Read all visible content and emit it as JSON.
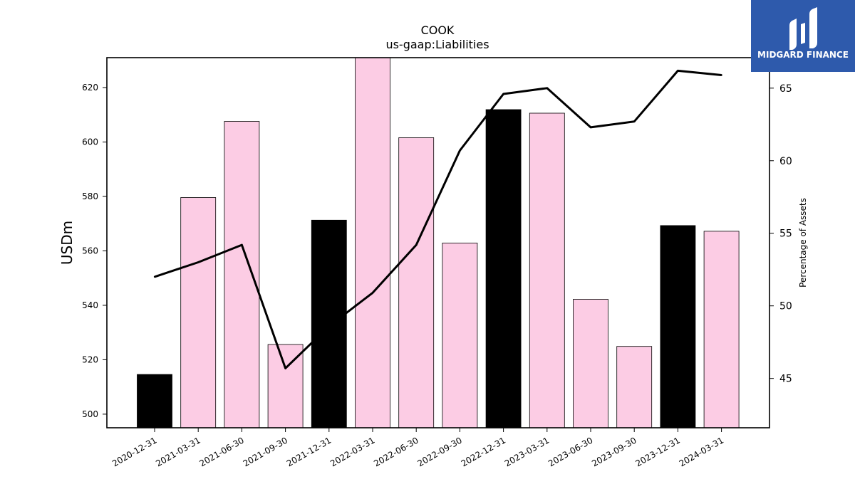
{
  "logo": {
    "text": "MIDGARD FINANCE",
    "bg_color": "#2e5aac"
  },
  "chart_data": {
    "type": "bar",
    "title": "COOK",
    "subtitle": "us-gaap:Liabilities",
    "ylabel": "USDm",
    "ylabel_right": "Percentage of Assets",
    "ylim": [
      495,
      631
    ],
    "ylim_right": [
      41.6,
      67.1
    ],
    "yticks": [
      500,
      520,
      540,
      560,
      580,
      600,
      620
    ],
    "yticks_right": [
      45,
      50,
      55,
      60,
      65
    ],
    "categories": [
      "2020-12-31",
      "2021-03-31",
      "2021-06-30",
      "2021-09-30",
      "2021-12-31",
      "2022-03-31",
      "2022-06-30",
      "2022-09-30",
      "2022-12-31",
      "2023-03-31",
      "2023-06-30",
      "2023-09-30",
      "2023-12-31",
      "2024-03-31"
    ],
    "series": [
      {
        "type": "bar",
        "axis": "left",
        "values": [
          514.6,
          579.6,
          607.6,
          525.6,
          571.3,
          631.0,
          601.6,
          562.9,
          611.9,
          610.6,
          542.2,
          524.9,
          569.3,
          567.2
        ],
        "colors": [
          "#000000",
          "#fccce4",
          "#fccce4",
          "#fccce4",
          "#000000",
          "#fccce4",
          "#fccce4",
          "#fccce4",
          "#000000",
          "#fccce4",
          "#fccce4",
          "#fccce4",
          "#000000",
          "#fccce4"
        ]
      },
      {
        "type": "line",
        "axis": "right",
        "color": "#000000",
        "values": [
          52.0,
          53.0,
          54.2,
          45.7,
          48.6,
          50.9,
          54.2,
          60.7,
          64.6,
          65.0,
          62.3,
          62.7,
          66.2,
          65.9
        ]
      }
    ],
    "grid": false,
    "legend": "none"
  }
}
